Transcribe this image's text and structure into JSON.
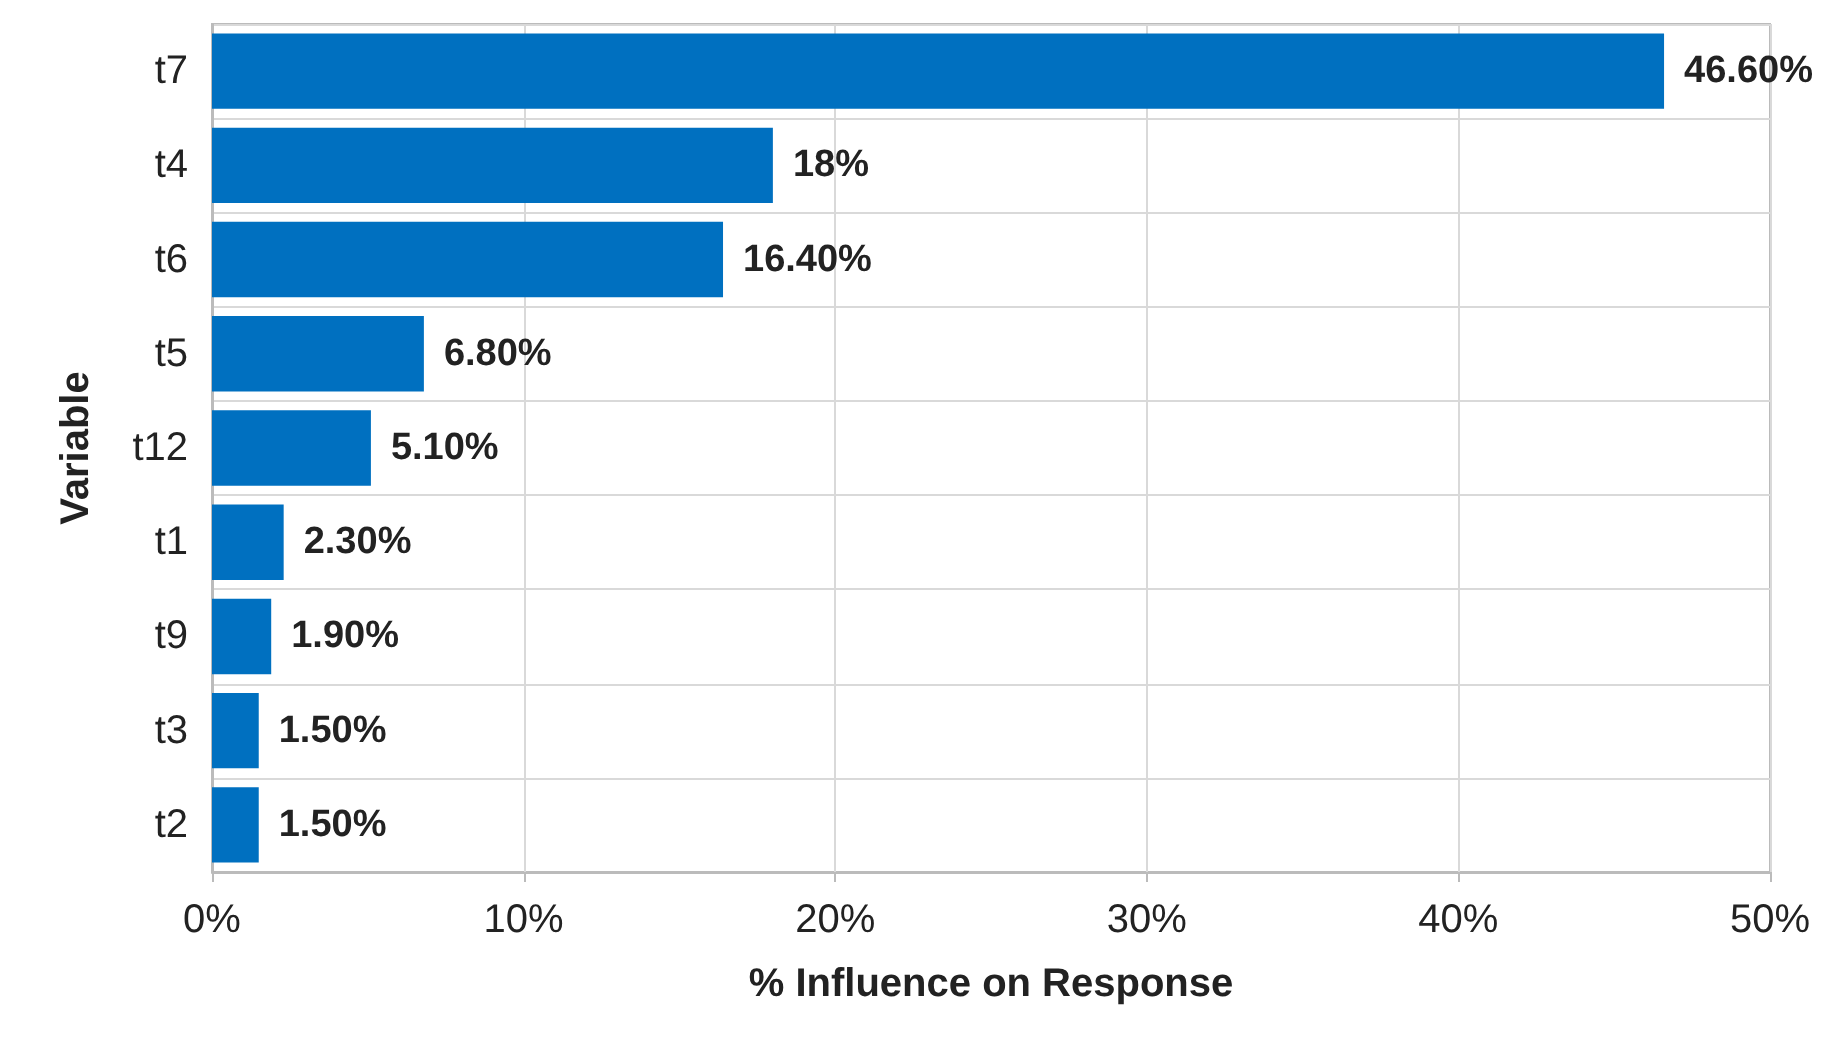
{
  "chart_data": {
    "type": "bar",
    "orientation": "horizontal",
    "xlabel": "% Influence on Response",
    "ylabel": "Variable",
    "categories": [
      "t7",
      "t4",
      "t6",
      "t5",
      "t12",
      "t1",
      "t9",
      "t3",
      "t2"
    ],
    "values": [
      46.6,
      18,
      16.4,
      6.8,
      5.1,
      2.3,
      1.9,
      1.5,
      1.5
    ],
    "value_labels": [
      "46.60%",
      "18%",
      "16.40%",
      "6.80%",
      "5.10%",
      "2.30%",
      "1.90%",
      "1.50%",
      "1.50%"
    ],
    "color": "#0070c0",
    "xlim": [
      0,
      50
    ],
    "xticks": [
      {
        "value": 0,
        "label": "0%"
      },
      {
        "value": 10,
        "label": "10%"
      },
      {
        "value": 20,
        "label": "20%"
      },
      {
        "value": 30,
        "label": "30%"
      },
      {
        "value": 40,
        "label": "40%"
      },
      {
        "value": 50,
        "label": "50%"
      }
    ],
    "grid": true
  }
}
